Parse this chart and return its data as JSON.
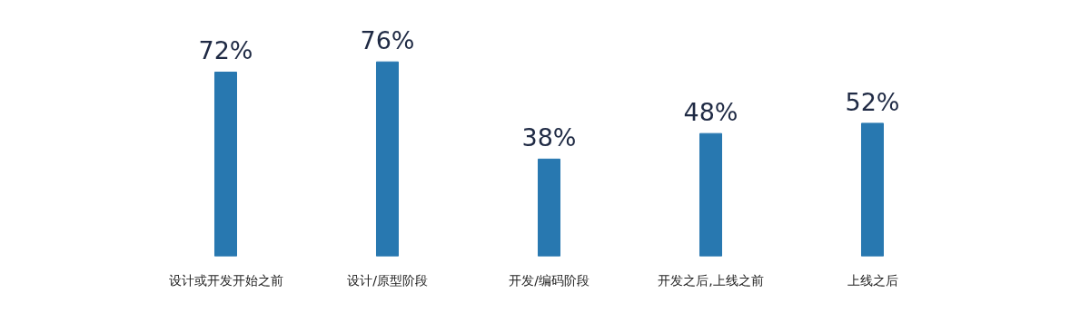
{
  "chart_data": {
    "type": "bar",
    "categories": [
      "设计或开发开始之前",
      "设计/原型阶段",
      "开发/编码阶段",
      "开发之后,上线之前",
      "上线之后"
    ],
    "values": [
      72,
      76,
      38,
      48,
      52
    ],
    "value_labels": [
      "72%",
      "76%",
      "38%",
      "48%",
      "52%"
    ],
    "color": "#2878b0",
    "tick_labels": "x",
    "grid": false
  }
}
